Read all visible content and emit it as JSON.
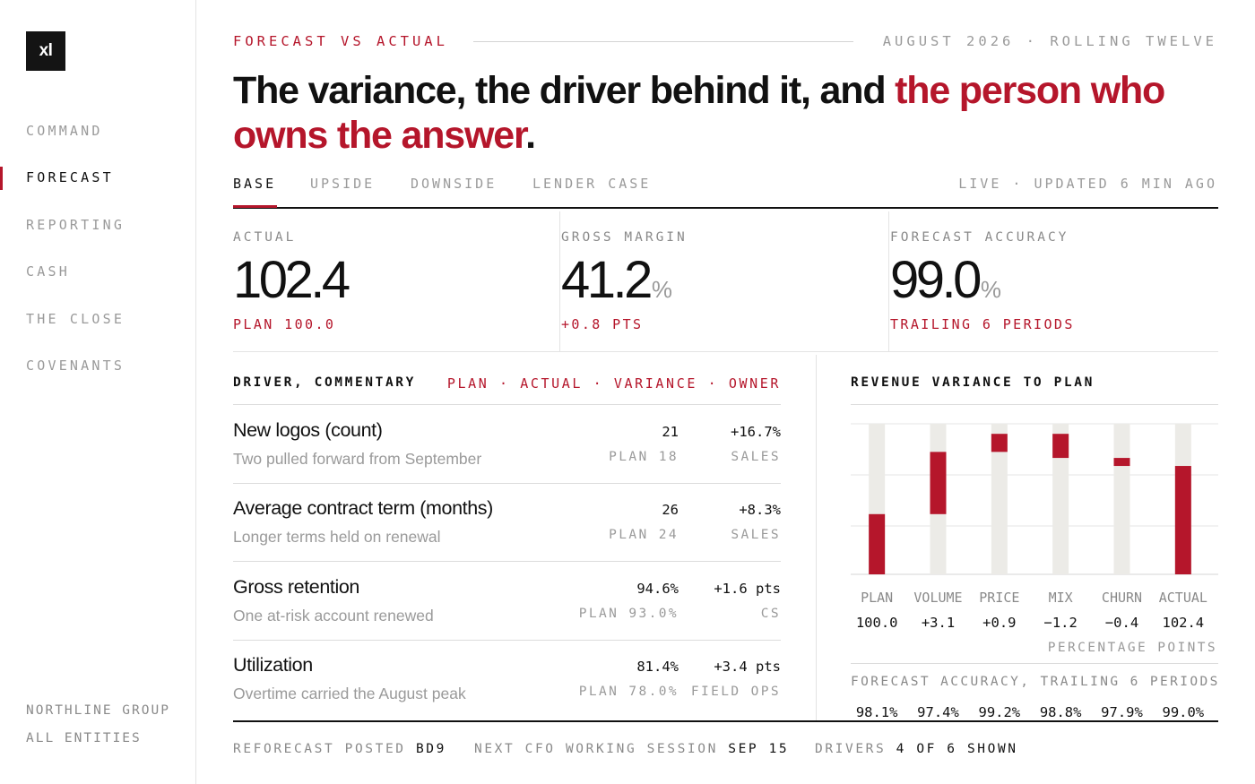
{
  "sidebar": {
    "logo": "xl",
    "nav": [
      {
        "label": "COMMAND",
        "active": false
      },
      {
        "label": "FORECAST",
        "active": true
      },
      {
        "label": "REPORTING",
        "active": false
      },
      {
        "label": "CASH",
        "active": false
      },
      {
        "label": "THE CLOSE",
        "active": false
      },
      {
        "label": "COVENANTS",
        "active": false
      }
    ],
    "entity": {
      "group": "NORTHLINE GROUP",
      "scope": "ALL ENTITIES"
    }
  },
  "header": {
    "eyebrow_left": "FORECAST VS ACTUAL",
    "eyebrow_right": "AUGUST 2026 · ROLLING TWELVE",
    "headline_plain": "The variance, the driver behind it, and ",
    "headline_accent": "the person who owns the answer",
    "headline_end": "."
  },
  "tabs": {
    "items": [
      {
        "label": "BASE",
        "active": true
      },
      {
        "label": "UPSIDE",
        "active": false
      },
      {
        "label": "DOWNSIDE",
        "active": false
      },
      {
        "label": "LENDER CASE",
        "active": false
      }
    ],
    "status": "LIVE · UPDATED 6 MIN AGO"
  },
  "kpis": [
    {
      "label": "ACTUAL",
      "value": "102.4",
      "unit": "",
      "sub": "PLAN 100.0"
    },
    {
      "label": "GROSS MARGIN",
      "value": "41.2",
      "unit": "%",
      "sub": "+0.8 PTS"
    },
    {
      "label": "FORECAST ACCURACY",
      "value": "99.0",
      "unit": "%",
      "sub": "TRAILING 6 PERIODS"
    }
  ],
  "drivers": {
    "title": "DRIVER, COMMENTARY",
    "legend": "PLAN · ACTUAL · VARIANCE · OWNER",
    "rows": [
      {
        "name": "New logos (count)",
        "comment": "Two pulled forward from September",
        "actual": "21",
        "plan": "PLAN 18",
        "variance": "+16.7%",
        "owner": "SALES"
      },
      {
        "name": "Average contract term (months)",
        "comment": "Longer terms held on renewal",
        "actual": "26",
        "plan": "PLAN 24",
        "variance": "+8.3%",
        "owner": "SALES"
      },
      {
        "name": "Gross retention",
        "comment": "One at-risk account renewed",
        "actual": "94.6%",
        "plan": "PLAN 93.0%",
        "variance": "+1.6 pts",
        "owner": "CS"
      },
      {
        "name": "Utilization",
        "comment": "Overtime carried the August peak",
        "actual": "81.4%",
        "plan": "PLAN 78.0%",
        "variance": "+3.4 pts",
        "owner": "FIELD OPS"
      }
    ]
  },
  "chart_data": {
    "type": "bar",
    "subtype": "waterfall",
    "title": "REVENUE VARIANCE TO PLAN",
    "categories": [
      "PLAN",
      "VOLUME",
      "PRICE",
      "MIX",
      "CHURN",
      "ACTUAL"
    ],
    "values": [
      100.0,
      3.1,
      0.9,
      -1.2,
      -0.4,
      102.4
    ],
    "value_labels": [
      "100.0",
      "+3.1",
      "+0.9",
      "−1.2",
      "−0.4",
      "102.4"
    ],
    "kinds": [
      "total",
      "delta",
      "delta",
      "delta",
      "delta",
      "total"
    ],
    "ylim": [
      97,
      104.5
    ],
    "unit": "PERCENTAGE POINTS",
    "grid": true,
    "colors": {
      "bar": "#b5162b",
      "track": "#ecebe7",
      "grid": "#e6e6e6"
    }
  },
  "accuracy": {
    "title": "FORECAST ACCURACY, TRAILING 6 PERIODS",
    "values": [
      "98.1%",
      "97.4%",
      "99.2%",
      "98.8%",
      "97.9%",
      "99.0%"
    ]
  },
  "footer": {
    "reforecast_label": "REFORECAST POSTED",
    "reforecast_value": "BD9",
    "session_label": "NEXT CFO WORKING SESSION",
    "session_value": "SEP 15",
    "drivers_label": "DRIVERS",
    "drivers_value": "4 OF 6 SHOWN"
  },
  "colors": {
    "accent": "#b5162b",
    "ink": "#111111",
    "muted": "#9a9a9a"
  }
}
